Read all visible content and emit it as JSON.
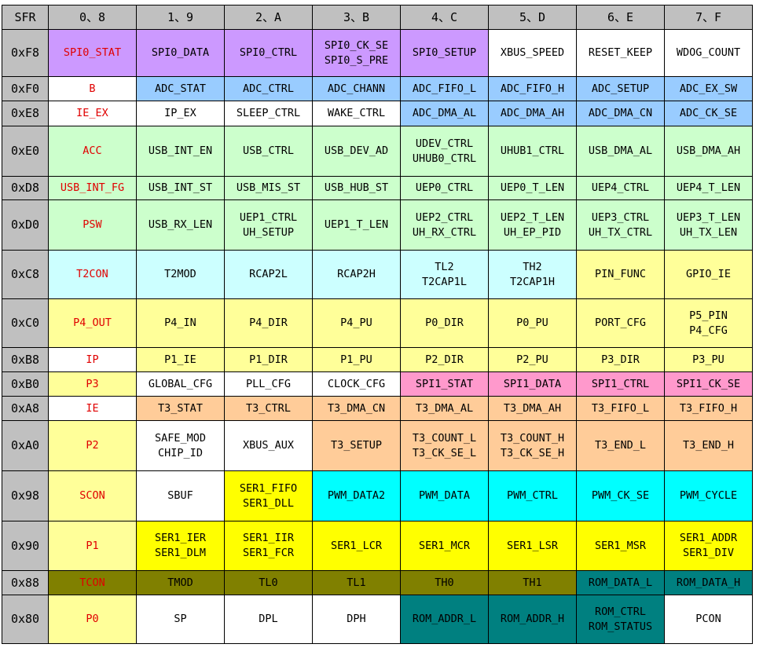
{
  "table": {
    "columns": [
      "SFR",
      "0、8",
      "1、9",
      "2、A",
      "3、B",
      "4、C",
      "5、D",
      "6、E",
      "7、F"
    ],
    "rows": [
      {
        "addr": "0xF8",
        "height": 60,
        "cells": [
          {
            "text": [
              "SPI0_STAT"
            ],
            "color": "purple",
            "red": true
          },
          {
            "text": [
              "SPI0_DATA"
            ],
            "color": "purple"
          },
          {
            "text": [
              "SPI0_CTRL"
            ],
            "color": "purple"
          },
          {
            "text": [
              "SPI0_CK_SE",
              "SPI0_S_PRE"
            ],
            "color": "purple"
          },
          {
            "text": [
              "SPI0_SETUP"
            ],
            "color": "purple"
          },
          {
            "text": [
              "XBUS_SPEED"
            ],
            "color": "white"
          },
          {
            "text": [
              "RESET_KEEP"
            ],
            "color": "white"
          },
          {
            "text": [
              "WDOG_COUNT"
            ],
            "color": "white"
          }
        ]
      },
      {
        "addr": "0xF0",
        "height": 31,
        "cells": [
          {
            "text": [
              "B"
            ],
            "color": "white",
            "red": true
          },
          {
            "text": [
              "ADC_STAT"
            ],
            "color": "blue"
          },
          {
            "text": [
              "ADC_CTRL"
            ],
            "color": "blue"
          },
          {
            "text": [
              "ADC_CHANN"
            ],
            "color": "blue"
          },
          {
            "text": [
              "ADC_FIFO_L"
            ],
            "color": "blue"
          },
          {
            "text": [
              "ADC_FIFO_H"
            ],
            "color": "blue"
          },
          {
            "text": [
              "ADC_SETUP"
            ],
            "color": "blue"
          },
          {
            "text": [
              "ADC_EX_SW"
            ],
            "color": "blue"
          }
        ]
      },
      {
        "addr": "0xE8",
        "height": 32,
        "cells": [
          {
            "text": [
              "IE_EX"
            ],
            "color": "white",
            "red": true
          },
          {
            "text": [
              "IP_EX"
            ],
            "color": "white"
          },
          {
            "text": [
              "SLEEP_CTRL"
            ],
            "color": "white"
          },
          {
            "text": [
              "WAKE_CTRL"
            ],
            "color": "white"
          },
          {
            "text": [
              "ADC_DMA_AL"
            ],
            "color": "blue"
          },
          {
            "text": [
              "ADC_DMA_AH"
            ],
            "color": "blue"
          },
          {
            "text": [
              "ADC_DMA_CN"
            ],
            "color": "blue"
          },
          {
            "text": [
              "ADC_CK_SE"
            ],
            "color": "blue"
          }
        ]
      },
      {
        "addr": "0xE0",
        "height": 64,
        "cells": [
          {
            "text": [
              "ACC"
            ],
            "color": "green",
            "red": true
          },
          {
            "text": [
              "USB_INT_EN"
            ],
            "color": "green"
          },
          {
            "text": [
              "USB_CTRL"
            ],
            "color": "green"
          },
          {
            "text": [
              "USB_DEV_AD"
            ],
            "color": "green"
          },
          {
            "text": [
              "UDEV_CTRL",
              "UHUB0_CTRL"
            ],
            "color": "green"
          },
          {
            "text": [
              "UHUB1_CTRL"
            ],
            "color": "green"
          },
          {
            "text": [
              "USB_DMA_AL"
            ],
            "color": "green"
          },
          {
            "text": [
              "USB_DMA_AH"
            ],
            "color": "green"
          }
        ]
      },
      {
        "addr": "0xD8",
        "height": 30,
        "cells": [
          {
            "text": [
              "USB_INT_FG"
            ],
            "color": "green",
            "red": true
          },
          {
            "text": [
              "USB_INT_ST"
            ],
            "color": "green"
          },
          {
            "text": [
              "USB_MIS_ST"
            ],
            "color": "green"
          },
          {
            "text": [
              "USB_HUB_ST"
            ],
            "color": "green"
          },
          {
            "text": [
              "UEP0_CTRL"
            ],
            "color": "green"
          },
          {
            "text": [
              "UEP0_T_LEN"
            ],
            "color": "green"
          },
          {
            "text": [
              "UEP4_CTRL"
            ],
            "color": "green"
          },
          {
            "text": [
              "UEP4_T_LEN"
            ],
            "color": "green"
          }
        ]
      },
      {
        "addr": "0xD0",
        "height": 64,
        "cells": [
          {
            "text": [
              "PSW"
            ],
            "color": "green",
            "red": true
          },
          {
            "text": [
              "USB_RX_LEN"
            ],
            "color": "green"
          },
          {
            "text": [
              "UEP1_CTRL",
              "UH_SETUP"
            ],
            "color": "green"
          },
          {
            "text": [
              "UEP1_T_LEN"
            ],
            "color": "green"
          },
          {
            "text": [
              "UEP2_CTRL",
              "UH_RX_CTRL"
            ],
            "color": "green"
          },
          {
            "text": [
              "UEP2_T_LEN",
              "UH_EP_PID"
            ],
            "color": "green"
          },
          {
            "text": [
              "UEP3_CTRL",
              "UH_TX_CTRL"
            ],
            "color": "green"
          },
          {
            "text": [
              "UEP3_T_LEN",
              "UH_TX_LEN"
            ],
            "color": "green"
          }
        ]
      },
      {
        "addr": "0xC8",
        "height": 62,
        "cells": [
          {
            "text": [
              "T2CON"
            ],
            "color": "cyanl",
            "red": true
          },
          {
            "text": [
              "T2MOD"
            ],
            "color": "cyanl"
          },
          {
            "text": [
              "RCAP2L"
            ],
            "color": "cyanl"
          },
          {
            "text": [
              "RCAP2H"
            ],
            "color": "cyanl"
          },
          {
            "text": [
              "TL2",
              "T2CAP1L"
            ],
            "color": "cyanl"
          },
          {
            "text": [
              "TH2",
              "T2CAP1H"
            ],
            "color": "cyanl"
          },
          {
            "text": [
              "PIN_FUNC"
            ],
            "color": "yell"
          },
          {
            "text": [
              "GPIO_IE"
            ],
            "color": "yell"
          }
        ]
      },
      {
        "addr": "0xC0",
        "height": 62,
        "cells": [
          {
            "text": [
              "P4_OUT"
            ],
            "color": "yell",
            "red": true
          },
          {
            "text": [
              "P4_IN"
            ],
            "color": "yell"
          },
          {
            "text": [
              "P4_DIR"
            ],
            "color": "yell"
          },
          {
            "text": [
              "P4_PU"
            ],
            "color": "yell"
          },
          {
            "text": [
              "P0_DIR"
            ],
            "color": "yell"
          },
          {
            "text": [
              "P0_PU"
            ],
            "color": "yell"
          },
          {
            "text": [
              "PORT_CFG"
            ],
            "color": "yell"
          },
          {
            "text": [
              "P5_PIN",
              "P4_CFG"
            ],
            "color": "yell"
          }
        ]
      },
      {
        "addr": "0xB8",
        "height": 31,
        "cells": [
          {
            "text": [
              "IP"
            ],
            "color": "white",
            "red": true
          },
          {
            "text": [
              "P1_IE"
            ],
            "color": "yell"
          },
          {
            "text": [
              "P1_DIR"
            ],
            "color": "yell"
          },
          {
            "text": [
              "P1_PU"
            ],
            "color": "yell"
          },
          {
            "text": [
              "P2_DIR"
            ],
            "color": "yell"
          },
          {
            "text": [
              "P2_PU"
            ],
            "color": "yell"
          },
          {
            "text": [
              "P3_DIR"
            ],
            "color": "yell"
          },
          {
            "text": [
              "P3_PU"
            ],
            "color": "yell"
          }
        ]
      },
      {
        "addr": "0xB0",
        "height": 31,
        "cells": [
          {
            "text": [
              "P3"
            ],
            "color": "yell",
            "red": true
          },
          {
            "text": [
              "GLOBAL_CFG"
            ],
            "color": "white"
          },
          {
            "text": [
              "PLL_CFG"
            ],
            "color": "white"
          },
          {
            "text": [
              "CLOCK_CFG"
            ],
            "color": "white"
          },
          {
            "text": [
              "SPI1_STAT"
            ],
            "color": "pink"
          },
          {
            "text": [
              "SPI1_DATA"
            ],
            "color": "pink"
          },
          {
            "text": [
              "SPI1_CTRL"
            ],
            "color": "pink"
          },
          {
            "text": [
              "SPI1_CK_SE"
            ],
            "color": "pink"
          }
        ]
      },
      {
        "addr": "0xA8",
        "height": 31,
        "cells": [
          {
            "text": [
              "IE"
            ],
            "color": "white",
            "red": true
          },
          {
            "text": [
              "T3_STAT"
            ],
            "color": "tan"
          },
          {
            "text": [
              "T3_CTRL"
            ],
            "color": "tan"
          },
          {
            "text": [
              "T3_DMA_CN"
            ],
            "color": "tan"
          },
          {
            "text": [
              "T3_DMA_AL"
            ],
            "color": "tan"
          },
          {
            "text": [
              "T3_DMA_AH"
            ],
            "color": "tan"
          },
          {
            "text": [
              "T3_FIFO_L"
            ],
            "color": "tan"
          },
          {
            "text": [
              "T3_FIFO_H"
            ],
            "color": "tan"
          }
        ]
      },
      {
        "addr": "0xA0",
        "height": 64,
        "cells": [
          {
            "text": [
              "P2"
            ],
            "color": "yell",
            "red": true
          },
          {
            "text": [
              "SAFE_MOD",
              "CHIP_ID"
            ],
            "color": "white"
          },
          {
            "text": [
              "XBUS_AUX"
            ],
            "color": "white"
          },
          {
            "text": [
              "T3_SETUP"
            ],
            "color": "tan"
          },
          {
            "text": [
              "T3_COUNT_L",
              "T3_CK_SE_L"
            ],
            "color": "tan"
          },
          {
            "text": [
              "T3_COUNT_H",
              "T3_CK_SE_H"
            ],
            "color": "tan"
          },
          {
            "text": [
              "T3_END_L"
            ],
            "color": "tan"
          },
          {
            "text": [
              "T3_END_H"
            ],
            "color": "tan"
          }
        ]
      },
      {
        "addr": "0x98",
        "height": 64,
        "cells": [
          {
            "text": [
              "SCON"
            ],
            "color": "yell",
            "red": true
          },
          {
            "text": [
              "SBUF"
            ],
            "color": "white"
          },
          {
            "text": [
              "SER1_FIFO",
              "SER1_DLL"
            ],
            "color": "yellow"
          },
          {
            "text": [
              "PWM_DATA2"
            ],
            "color": "cyan"
          },
          {
            "text": [
              "PWM_DATA"
            ],
            "color": "cyan"
          },
          {
            "text": [
              "PWM_CTRL"
            ],
            "color": "cyan"
          },
          {
            "text": [
              "PWM_CK_SE"
            ],
            "color": "cyan"
          },
          {
            "text": [
              "PWM_CYCLE"
            ],
            "color": "cyan"
          }
        ]
      },
      {
        "addr": "0x90",
        "height": 63,
        "cells": [
          {
            "text": [
              "P1"
            ],
            "color": "yell",
            "red": true
          },
          {
            "text": [
              "SER1_IER",
              "SER1_DLM"
            ],
            "color": "yellow"
          },
          {
            "text": [
              "SER1_IIR",
              "SER1_FCR"
            ],
            "color": "yellow"
          },
          {
            "text": [
              "SER1_LCR"
            ],
            "color": "yellow"
          },
          {
            "text": [
              "SER1_MCR"
            ],
            "color": "yellow"
          },
          {
            "text": [
              "SER1_LSR"
            ],
            "color": "yellow"
          },
          {
            "text": [
              "SER1_MSR"
            ],
            "color": "yellow"
          },
          {
            "text": [
              "SER1_ADDR",
              "SER1_DIV"
            ],
            "color": "yellow"
          }
        ]
      },
      {
        "addr": "0x88",
        "height": 31,
        "cells": [
          {
            "text": [
              "TCON"
            ],
            "color": "olive",
            "red": true
          },
          {
            "text": [
              "TMOD"
            ],
            "color": "olive"
          },
          {
            "text": [
              "TL0"
            ],
            "color": "olive"
          },
          {
            "text": [
              "TL1"
            ],
            "color": "olive"
          },
          {
            "text": [
              "TH0"
            ],
            "color": "olive"
          },
          {
            "text": [
              "TH1"
            ],
            "color": "olive"
          },
          {
            "text": [
              "ROM_DATA_L"
            ],
            "color": "teal"
          },
          {
            "text": [
              "ROM_DATA_H"
            ],
            "color": "teal"
          }
        ]
      },
      {
        "addr": "0x80",
        "height": 62,
        "cells": [
          {
            "text": [
              "P0"
            ],
            "color": "yell",
            "red": true
          },
          {
            "text": [
              "SP"
            ],
            "color": "white"
          },
          {
            "text": [
              "DPL"
            ],
            "color": "white"
          },
          {
            "text": [
              "DPH"
            ],
            "color": "white"
          },
          {
            "text": [
              "ROM_ADDR_L"
            ],
            "color": "teal"
          },
          {
            "text": [
              "ROM_ADDR_H"
            ],
            "color": "teal"
          },
          {
            "text": [
              "ROM_CTRL",
              "ROM_STATUS"
            ],
            "color": "teal"
          },
          {
            "text": [
              "PCON"
            ],
            "color": "white"
          }
        ]
      }
    ]
  },
  "colors": {
    "header_gray": "#c0c0c0",
    "address_red": "#e00000",
    "purple": "#cc99ff",
    "blue": "#99ccff",
    "green": "#ccffcc",
    "light_cyan": "#ccffff",
    "light_yellow": "#ffff99",
    "pink": "#ff99cc",
    "tan": "#ffcc99",
    "yellow": "#ffff00",
    "cyan": "#00ffff",
    "olive": "#808000",
    "teal": "#008080"
  }
}
